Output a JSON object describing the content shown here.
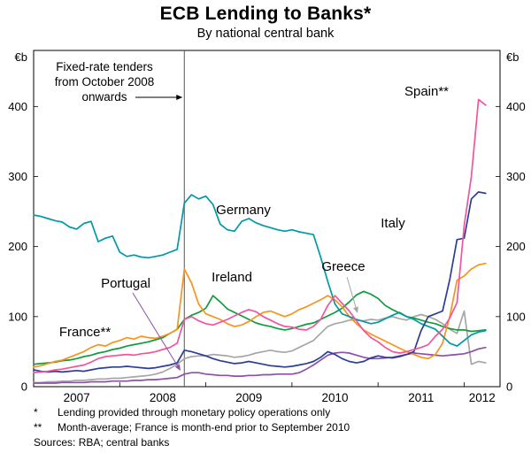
{
  "title": "ECB Lending to Banks*",
  "subtitle": "By national central bank",
  "axis": {
    "unit_left": "€b",
    "unit_right": "€b",
    "yticks": [
      0,
      100,
      200,
      300,
      400
    ],
    "years": [
      2007,
      2008,
      2009,
      2010,
      2011,
      2012
    ]
  },
  "annotation": {
    "line1": "Fixed-rate tenders",
    "line2": "from October 2008",
    "line3": "onwards"
  },
  "footnotes": [
    {
      "marker": "*",
      "text": "Lending provided through monetary policy operations only"
    },
    {
      "marker": "**",
      "text": "Month-average; France is month-end prior to September 2010"
    }
  ],
  "sources": "Sources: RBA; central banks",
  "chart_data": {
    "type": "line",
    "title": "ECB Lending to Banks*",
    "subtitle": "By national central bank",
    "ylabel": "€b",
    "ylim": [
      0,
      480
    ],
    "yticks": [
      0,
      100,
      200,
      300,
      400
    ],
    "x_unit": "month",
    "x_range": [
      "2007-01",
      "2012-04"
    ],
    "x_axis_end": "2012-06",
    "grid": false,
    "legend": "inline-labels",
    "vline": {
      "x": "2008-10",
      "note": "Fixed-rate tenders from October 2008 onwards"
    },
    "series": [
      {
        "name": "Greece",
        "label": "Greece",
        "color": "#A6A6A6",
        "values": [
          6,
          6,
          7,
          7,
          8,
          8,
          9,
          9,
          10,
          11,
          11,
          12,
          12,
          13,
          14,
          15,
          16,
          18,
          21,
          26,
          32,
          40,
          43,
          44,
          44,
          46,
          45,
          44,
          42,
          43,
          45,
          48,
          50,
          52,
          50,
          49,
          51,
          56,
          61,
          66,
          76,
          86,
          90,
          92,
          95,
          95,
          94,
          96,
          95,
          98,
          100,
          97,
          95,
          100,
          103,
          100,
          96,
          90,
          82,
          76,
          108,
          32,
          36,
          34
        ]
      },
      {
        "name": "Portugal",
        "label": "Portugal",
        "color": "#8E4FA8",
        "values": [
          5,
          5,
          5,
          5,
          6,
          6,
          6,
          6,
          7,
          7,
          7,
          8,
          8,
          8,
          9,
          9,
          10,
          10,
          11,
          12,
          13,
          18,
          20,
          20,
          18,
          17,
          16,
          16,
          15,
          15,
          16,
          16,
          17,
          17,
          18,
          18,
          18,
          20,
          25,
          31,
          38,
          45,
          48,
          49,
          48,
          45,
          42,
          40,
          40,
          41,
          42,
          44,
          46,
          48,
          47,
          46,
          45,
          44,
          45,
          46,
          47,
          50,
          54,
          56
        ]
      },
      {
        "name": "Ireland",
        "label": "Ireland",
        "color": "#109C3B",
        "values": [
          32,
          33,
          34,
          35,
          37,
          38,
          40,
          43,
          45,
          48,
          50,
          53,
          55,
          58,
          60,
          62,
          64,
          67,
          70,
          76,
          82,
          96,
          102,
          106,
          112,
          130,
          121,
          111,
          106,
          101,
          96,
          91,
          88,
          86,
          83,
          81,
          83,
          86,
          89,
          91,
          96,
          101,
          106,
          112,
          121,
          131,
          136,
          132,
          126,
          116,
          110,
          105,
          100,
          98,
          95,
          92,
          90,
          86,
          83,
          81,
          81,
          79,
          80,
          81
        ]
      },
      {
        "name": "France",
        "label": "France**",
        "color": "#F7941D",
        "values": [
          28,
          30,
          33,
          36,
          38,
          42,
          46,
          50,
          56,
          60,
          58,
          63,
          66,
          70,
          68,
          72,
          70,
          69,
          72,
          76,
          82,
          168,
          148,
          118,
          104,
          100,
          96,
          90,
          86,
          88,
          93,
          100,
          106,
          108,
          104,
          100,
          104,
          110,
          114,
          119,
          124,
          130,
          124,
          114,
          100,
          90,
          81,
          75,
          70,
          65,
          60,
          55,
          50,
          46,
          42,
          40,
          46,
          62,
          100,
          152,
          158,
          168,
          174,
          176
        ]
      },
      {
        "name": "Germany",
        "label": "Germany",
        "color": "#0099A5",
        "values": [
          245,
          243,
          240,
          237,
          235,
          228,
          225,
          233,
          236,
          207,
          212,
          215,
          192,
          186,
          188,
          185,
          184,
          186,
          188,
          192,
          196,
          262,
          274,
          268,
          272,
          260,
          232,
          224,
          222,
          236,
          240,
          234,
          230,
          227,
          224,
          222,
          224,
          221,
          219,
          217,
          185,
          150,
          118,
          104,
          100,
          96,
          93,
          90,
          92,
          97,
          102,
          106,
          100,
          96,
          90,
          86,
          82,
          72,
          62,
          58,
          66,
          74,
          78,
          80
        ]
      },
      {
        "name": "Italy",
        "label": "Italy",
        "color": "#2B3E97",
        "values": [
          24,
          22,
          21,
          22,
          21,
          22,
          23,
          22,
          24,
          26,
          27,
          28,
          28,
          29,
          28,
          27,
          26,
          27,
          29,
          31,
          34,
          52,
          50,
          47,
          44,
          40,
          37,
          35,
          33,
          34,
          36,
          34,
          32,
          30,
          29,
          28,
          29,
          31,
          33,
          36,
          42,
          50,
          46,
          40,
          36,
          34,
          36,
          41,
          44,
          42,
          41,
          43,
          46,
          50,
          80,
          100,
          104,
          108,
          153,
          210,
          212,
          268,
          278,
          276
        ]
      },
      {
        "name": "Spain",
        "label": "Spain**",
        "color": "#F0559E",
        "values": [
          20,
          21,
          22,
          24,
          25,
          27,
          29,
          31,
          35,
          40,
          43,
          44,
          45,
          46,
          45,
          47,
          48,
          50,
          53,
          56,
          62,
          96,
          100,
          94,
          90,
          88,
          92,
          96,
          101,
          106,
          110,
          107,
          100,
          95,
          90,
          86,
          85,
          82,
          81,
          86,
          96,
          116,
          130,
          119,
          108,
          94,
          80,
          70,
          64,
          56,
          50,
          48,
          50,
          53,
          56,
          60,
          72,
          82,
          98,
          120,
          230,
          300,
          410,
          402
        ]
      }
    ]
  }
}
